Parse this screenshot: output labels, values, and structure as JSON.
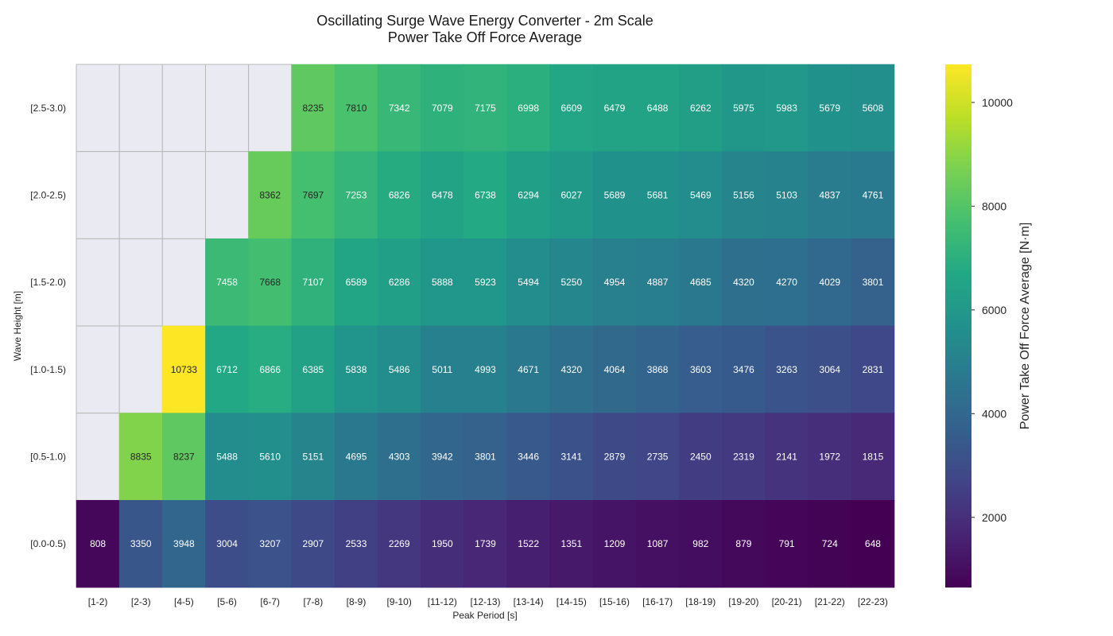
{
  "chart_data": {
    "type": "heatmap",
    "title": "Oscillating Surge Wave Energy Converter - 2m Scale",
    "subtitle": "Power Take Off Force Average",
    "xlabel": "Peak Period [s]",
    "ylabel": "Wave Height [m]",
    "colorbar_label": "Power Take Off Force Average [N·m]",
    "colormap": "viridis",
    "missing_color": "#eaeaf2",
    "grid_color": "#b8b8b8",
    "x_categories": [
      "[1-2)",
      "[2-3)",
      "[4-5)",
      "[5-6)",
      "[6-7)",
      "[7-8)",
      "[8-9)",
      "[9-10)",
      "[11-12)",
      "[12-13)",
      "[13-14)",
      "[14-15)",
      "[15-16)",
      "[16-17)",
      "[18-19)",
      "[19-20)",
      "[20-21)",
      "[21-22)",
      "[22-23)"
    ],
    "y_categories": [
      "[2.5-3.0)",
      "[2.0-2.5)",
      "[1.5-2.0)",
      "[1.0-1.5)",
      "[0.5-1.0)",
      "[0.0-0.5)"
    ],
    "values": [
      [
        null,
        null,
        null,
        null,
        null,
        8235,
        7810,
        7342,
        7079,
        7175,
        6998,
        6609,
        6479,
        6488,
        6262,
        5975,
        5983,
        5679,
        5608
      ],
      [
        null,
        null,
        null,
        null,
        8362,
        7697,
        7253,
        6826,
        6478,
        6738,
        6294,
        6027,
        5689,
        5681,
        5469,
        5156,
        5103,
        4837,
        4761
      ],
      [
        null,
        null,
        null,
        7458,
        7668,
        7107,
        6589,
        6286,
        5888,
        5923,
        5494,
        5250,
        4954,
        4887,
        4685,
        4320,
        4270,
        4029,
        3801
      ],
      [
        null,
        null,
        10733,
        6712,
        6866,
        6385,
        5838,
        5486,
        5011,
        4993,
        4671,
        4320,
        4064,
        3868,
        3603,
        3476,
        3263,
        3064,
        2831
      ],
      [
        null,
        8835,
        8237,
        5488,
        5610,
        5151,
        4695,
        4303,
        3942,
        3801,
        3446,
        3141,
        2879,
        2735,
        2450,
        2319,
        2141,
        1972,
        1815
      ],
      [
        808,
        3350,
        3948,
        3004,
        3207,
        2907,
        2533,
        2269,
        1950,
        1739,
        1522,
        1351,
        1209,
        1087,
        982,
        879,
        791,
        724,
        648
      ]
    ],
    "color_range": [
      648,
      10733
    ],
    "colorbar_ticks": [
      2000,
      4000,
      6000,
      8000,
      10000
    ],
    "colorbar_tick_labels": [
      "2000",
      "4000",
      "6000",
      "8000",
      "10000"
    ]
  }
}
